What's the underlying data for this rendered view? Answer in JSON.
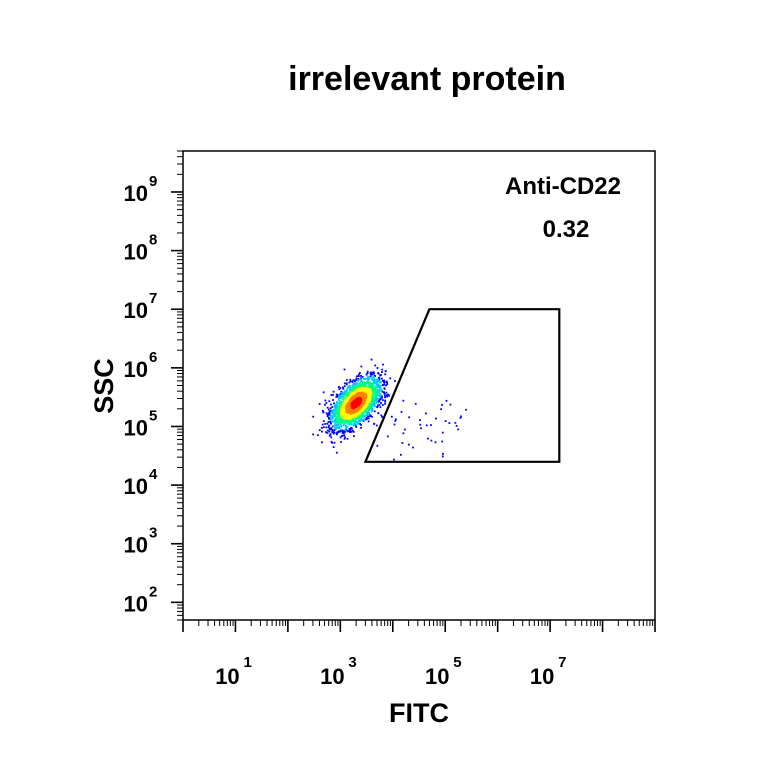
{
  "chart_data": {
    "type": "scatter",
    "title": "irrelevant protein",
    "xlabel": "FITC",
    "ylabel": "SSC",
    "x_scale": "log",
    "y_scale": "log",
    "xlim": [
      1,
      1000000000
    ],
    "ylim": [
      50,
      5000000000
    ],
    "x_ticks": [
      {
        "base": "10",
        "exp": "1",
        "value": 10
      },
      {
        "base": "10",
        "exp": "3",
        "value": 1000
      },
      {
        "base": "10",
        "exp": "5",
        "value": 100000
      },
      {
        "base": "10",
        "exp": "7",
        "value": 10000000
      }
    ],
    "y_ticks": [
      {
        "base": "10",
        "exp": "2",
        "value": 100
      },
      {
        "base": "10",
        "exp": "3",
        "value": 1000
      },
      {
        "base": "10",
        "exp": "4",
        "value": 10000
      },
      {
        "base": "10",
        "exp": "5",
        "value": 100000
      },
      {
        "base": "10",
        "exp": "6",
        "value": 1000000
      },
      {
        "base": "10",
        "exp": "7",
        "value": 10000000
      },
      {
        "base": "10",
        "exp": "8",
        "value": 100000000
      },
      {
        "base": "10",
        "exp": "9",
        "value": 1000000000
      }
    ],
    "population": {
      "center": [
        2000,
        250000
      ],
      "spread_log10": [
        0.22,
        0.2
      ],
      "colormap": [
        "#0000ff",
        "#00c8ff",
        "#00ff80",
        "#ffff00",
        "#ff8000",
        "#ff0000"
      ]
    },
    "gate": {
      "name": "Anti-CD22",
      "value": "0.32",
      "polygon": [
        [
          3000,
          25000
        ],
        [
          50000,
          10000000
        ],
        [
          15000000,
          10000000
        ],
        [
          15000000,
          25000
        ]
      ]
    },
    "grid": false
  }
}
